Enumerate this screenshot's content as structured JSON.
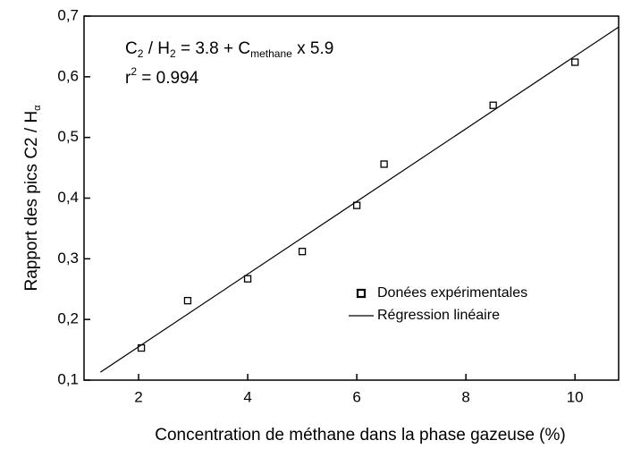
{
  "chart_data": {
    "type": "scatter",
    "x_label": "Concentration de méthane dans la phase gazeuse (%)",
    "y_label": [
      "Rapport des pics C2 / H",
      "α"
    ],
    "equation": [
      "C",
      "2",
      " / H",
      "2",
      " = 3.8 + C",
      "methane",
      " x 5.9"
    ],
    "r2": [
      "r",
      "2",
      " = 0.994"
    ],
    "xlim": [
      1,
      10.8
    ],
    "ylim": [
      0.1,
      0.7
    ],
    "xticks": [
      2,
      4,
      6,
      8,
      10
    ],
    "yticks": [
      {
        "value": 0.1,
        "label": "0,1"
      },
      {
        "value": 0.2,
        "label": "0,2"
      },
      {
        "value": 0.3,
        "label": "0,3"
      },
      {
        "value": 0.4,
        "label": "0,4"
      },
      {
        "value": 0.5,
        "label": "0,5"
      },
      {
        "value": 0.6,
        "label": "0,6"
      },
      {
        "value": 0.7,
        "label": "0,7"
      }
    ],
    "legend": "lower right",
    "series": [
      {
        "name": "Donées expérimentales",
        "color": "#000000",
        "marker": "square",
        "x": [
          2.05,
          2.9,
          4,
          5,
          6,
          6.5,
          8.5,
          10
        ],
        "values": [
          0.153,
          0.231,
          0.267,
          0.312,
          0.388,
          0.456,
          0.553,
          0.624
        ]
      },
      {
        "name": "Régression linéaire",
        "color": "#000000",
        "marker": "line",
        "x": [
          1.3,
          10.8
        ],
        "values": [
          0.113,
          0.682
        ]
      }
    ]
  }
}
